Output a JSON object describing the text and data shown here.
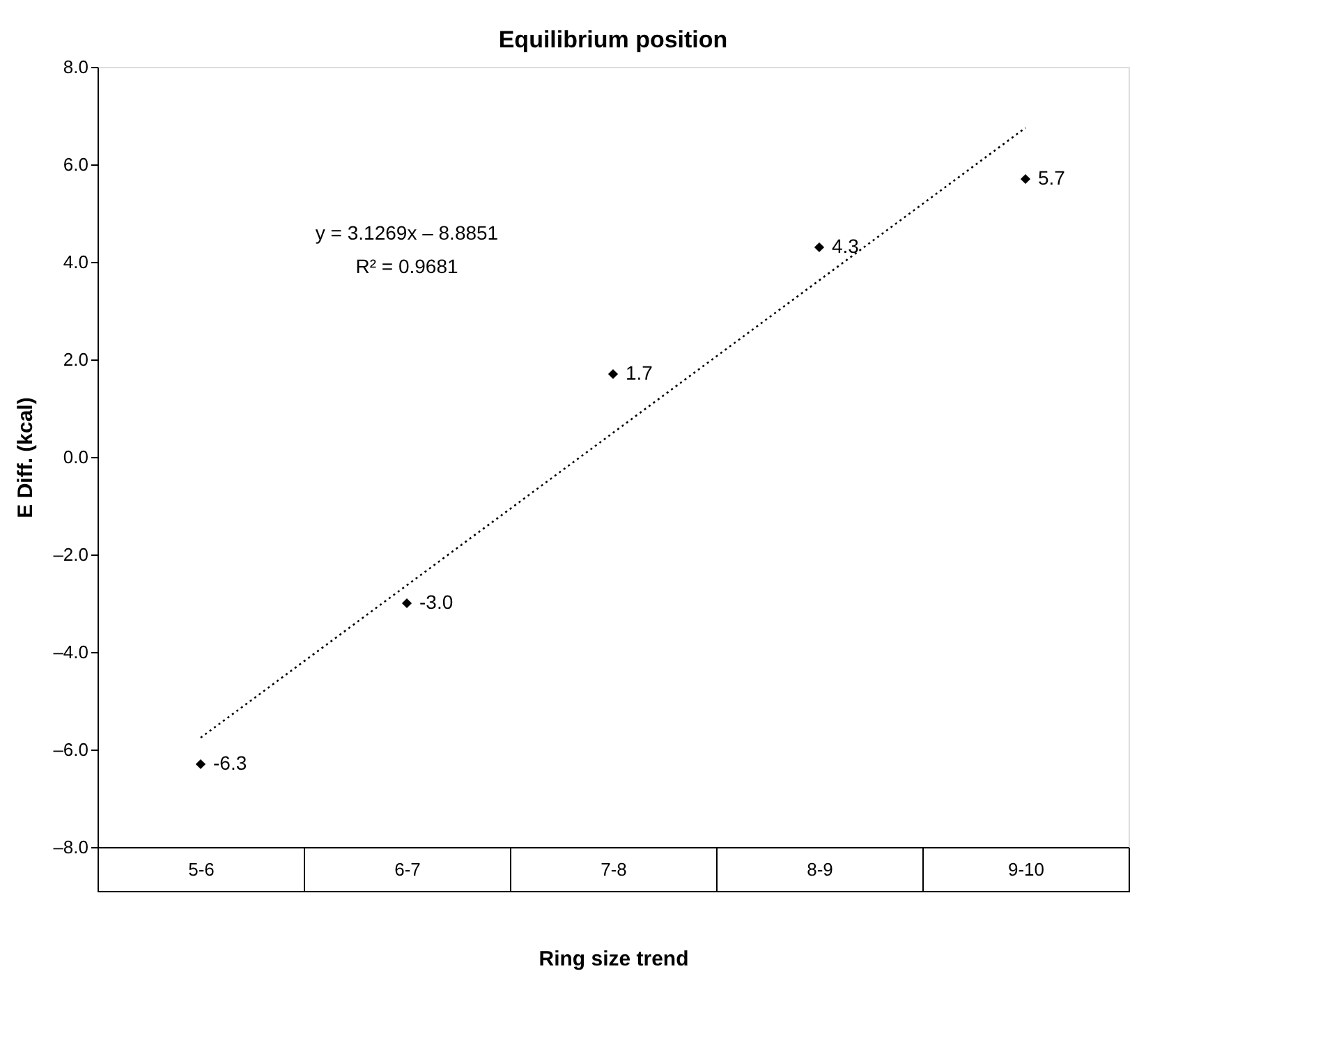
{
  "chart_data": {
    "type": "scatter",
    "title": "Equilibrium position",
    "xlabel": "Ring size trend",
    "ylabel": "E Diff. (kcal)",
    "categories": [
      "5-6",
      "6-7",
      "7-8",
      "8-9",
      "9-10"
    ],
    "series": [
      {
        "color": "#000000",
        "marker": "diamond",
        "values": [
          -6.3,
          -3.0,
          1.7,
          4.3,
          5.7
        ],
        "value_labels": [
          "-6.3",
          "-3.0",
          "1.7",
          "4.3",
          "5.7"
        ]
      },
      {
        "type": "line",
        "color": "#000000",
        "line_style": "dotted",
        "x": [
          "5-6",
          "6-7",
          "7-8",
          "8-9",
          "9-10"
        ],
        "values": [
          -5.758,
          -2.631,
          0.496,
          3.623,
          6.75
        ]
      }
    ],
    "annotations": [
      "y = 3.1269x – 8.8851",
      "R² = 0.9681"
    ],
    "ylim": [
      -8,
      8
    ],
    "yticks": [
      {
        "value": -8,
        "label": "–8.0"
      },
      {
        "value": -6,
        "label": "–6.0"
      },
      {
        "value": -4,
        "label": "–4.0"
      },
      {
        "value": -2,
        "label": "–2.0"
      },
      {
        "value": 0,
        "label": "0.0"
      },
      {
        "value": 2,
        "label": "2.0"
      },
      {
        "value": 4,
        "label": "4.0"
      },
      {
        "value": 6,
        "label": "6.0"
      },
      {
        "value": 8,
        "label": "8.0"
      }
    ],
    "grid": false,
    "legend": false
  }
}
